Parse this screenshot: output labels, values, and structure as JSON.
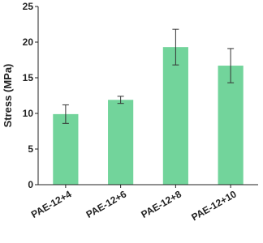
{
  "chart_data": {
    "type": "bar",
    "y_label": "Stress (MPa)",
    "categories": [
      "PAE-12+4",
      "PAE-12+6",
      "PAE-12+8",
      "PAE-12+10"
    ],
    "values": [
      9.9,
      11.9,
      19.3,
      16.7
    ],
    "errors": [
      1.3,
      0.5,
      2.5,
      2.4
    ],
    "color": "#72d49b",
    "ylim": [
      0,
      25
    ],
    "yticks": [
      0,
      5,
      10,
      15,
      20,
      25
    ]
  }
}
